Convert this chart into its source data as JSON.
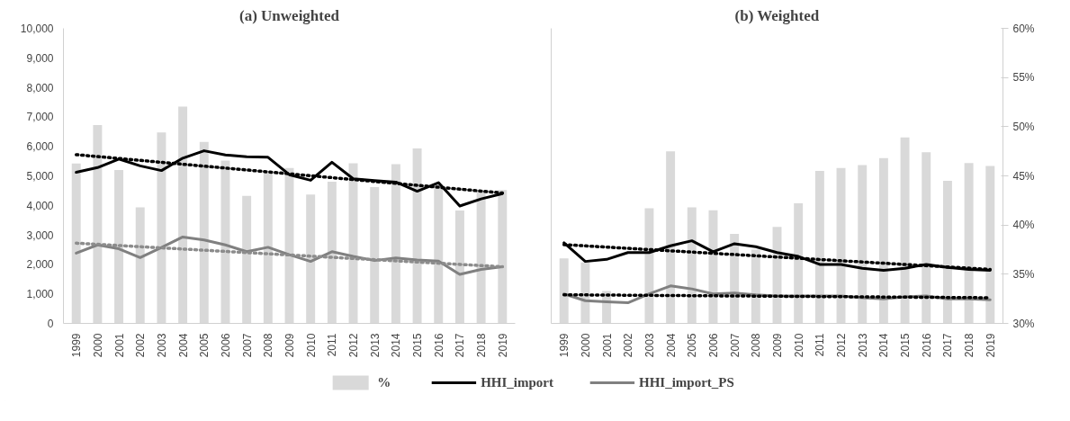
{
  "chart_data": [
    {
      "type": "bar",
      "title": "(a) Unweighted",
      "categories": [
        "1999",
        "2000",
        "2001",
        "2002",
        "2003",
        "2004",
        "2005",
        "2006",
        "2007",
        "2008",
        "2009",
        "2010",
        "2011",
        "2012",
        "2013",
        "2014",
        "2015",
        "2016",
        "2017",
        "2018",
        "2019"
      ],
      "series": [
        {
          "name": "%",
          "color": "#d9d9d9",
          "values": [
            5420,
            6720,
            5200,
            3930,
            6470,
            7350,
            6150,
            5520,
            4320,
            5100,
            5270,
            4370,
            4800,
            5430,
            4620,
            5400,
            5930,
            4700,
            3830,
            4500,
            4520
          ]
        },
        {
          "name": "HHI_import",
          "type": "line",
          "color": "#000000",
          "values": [
            5120,
            5280,
            5570,
            5340,
            5180,
            5600,
            5850,
            5710,
            5650,
            5630,
            5040,
            4850,
            5460,
            4900,
            4840,
            4790,
            4480,
            4770,
            3980,
            4220,
            4400
          ]
        },
        {
          "name": "HHI_import_PS",
          "type": "line",
          "color": "#808080",
          "values": [
            2380,
            2660,
            2530,
            2230,
            2570,
            2930,
            2830,
            2660,
            2430,
            2580,
            2330,
            2100,
            2430,
            2270,
            2130,
            2220,
            2150,
            2110,
            1660,
            1830,
            1920
          ]
        },
        {
          "type": "line",
          "line_style": "dotted",
          "color": "#000000",
          "values": [
            5720,
            5655,
            5590,
            5525,
            5460,
            5395,
            5330,
            5265,
            5200,
            5135,
            5070,
            5005,
            4940,
            4875,
            4810,
            4745,
            4680,
            4615,
            4550,
            4485,
            4420
          ]
        },
        {
          "type": "line",
          "line_style": "dotted",
          "color": "#8c8c8c",
          "values": [
            2720,
            2680,
            2640,
            2600,
            2560,
            2520,
            2480,
            2440,
            2400,
            2360,
            2320,
            2280,
            2240,
            2200,
            2160,
            2120,
            2080,
            2040,
            2000,
            1960,
            1920
          ]
        }
      ],
      "ylim": [
        0,
        10000
      ],
      "yticks": [
        {
          "value": 0,
          "label": "0"
        },
        {
          "value": 1000,
          "label": "1,000"
        },
        {
          "value": 2000,
          "label": "2,000"
        },
        {
          "value": 3000,
          "label": "3,000"
        },
        {
          "value": 4000,
          "label": "4,000"
        },
        {
          "value": 5000,
          "label": "5,000"
        },
        {
          "value": 6000,
          "label": "6,000"
        },
        {
          "value": 7000,
          "label": "7,000"
        },
        {
          "value": 8000,
          "label": "8,000"
        },
        {
          "value": 9000,
          "label": "9,000"
        },
        {
          "value": 10000,
          "label": "10,000"
        }
      ],
      "legend": "bottom",
      "grid": false
    },
    {
      "type": "bar",
      "title": "(b) Weighted",
      "categories": [
        "1999",
        "2000",
        "2001",
        "2002",
        "2003",
        "2004",
        "2005",
        "2006",
        "2007",
        "2008",
        "2009",
        "2010",
        "2011",
        "2012",
        "2013",
        "2014",
        "2015",
        "2016",
        "2017",
        "2018",
        "2019"
      ],
      "series": [
        {
          "name": "%",
          "axis": "y2",
          "color": "#d9d9d9",
          "values": [
            36.6,
            36.2,
            33.3,
            30,
            41.7,
            47.5,
            41.8,
            41.5,
            39.1,
            37.5,
            39.8,
            42.2,
            45.5,
            45.8,
            46.1,
            46.8,
            48.9,
            47.4,
            44.5,
            46.3,
            46.0
          ]
        },
        {
          "name": "HHI_import",
          "type": "line",
          "color": "#000000",
          "values": [
            2730,
            2100,
            2170,
            2400,
            2400,
            2630,
            2800,
            2430,
            2700,
            2600,
            2400,
            2270,
            2000,
            2000,
            1870,
            1800,
            1870,
            2000,
            1900,
            1830,
            1800
          ]
        },
        {
          "name": "HHI_import_PS",
          "type": "line",
          "color": "#808080",
          "values": [
            1000,
            770,
            730,
            700,
            1000,
            1270,
            1170,
            1000,
            1030,
            970,
            930,
            930,
            930,
            930,
            870,
            830,
            900,
            930,
            830,
            830,
            800
          ]
        },
        {
          "type": "line",
          "line_style": "dotted",
          "color": "#000000",
          "values": [
            2670,
            2628,
            2586,
            2544,
            2502,
            2460,
            2418,
            2376,
            2334,
            2292,
            2250,
            2208,
            2166,
            2124,
            2082,
            2040,
            1998,
            1956,
            1914,
            1872,
            1830
          ]
        },
        {
          "type": "line",
          "line_style": "dotted",
          "color": "#000000",
          "values": [
            970,
            965,
            960,
            955,
            950,
            945,
            940,
            935,
            930,
            925,
            920,
            915,
            910,
            905,
            900,
            895,
            890,
            885,
            880,
            875,
            870
          ]
        }
      ],
      "ylim": [
        0,
        10000
      ],
      "y2lim": [
        30,
        60
      ],
      "y2ticks": [
        {
          "value": 30,
          "label": "30%"
        },
        {
          "value": 35,
          "label": "35%"
        },
        {
          "value": 40,
          "label": "40%"
        },
        {
          "value": 45,
          "label": "45%"
        },
        {
          "value": 50,
          "label": "50%"
        },
        {
          "value": 55,
          "label": "55%"
        },
        {
          "value": 60,
          "label": "60%"
        }
      ],
      "tick_labels": "x",
      "legend": "bottom",
      "grid": false
    }
  ]
}
